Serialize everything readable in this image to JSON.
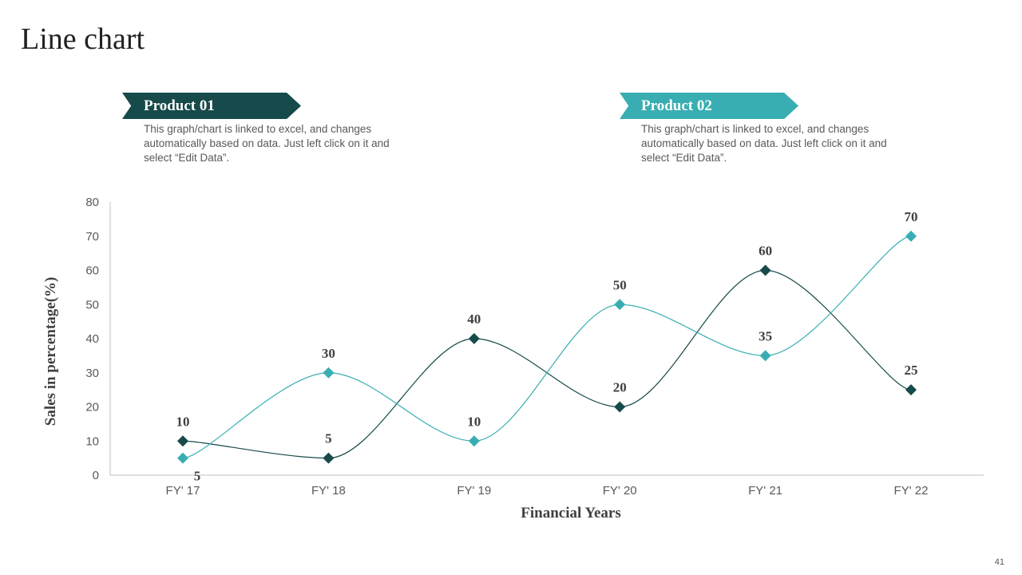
{
  "title": "Line chart",
  "legend": [
    {
      "label": "Product 01",
      "color": "#174a4a",
      "description": "This graph/chart is linked to excel, and changes automatically based on data. Just left click on it and select “Edit Data”."
    },
    {
      "label": "Product 02",
      "color": "#39aeb2",
      "description": "This graph/chart is linked to excel, and changes automatically based on data. Just left click on it and select “Edit Data”."
    }
  ],
  "page_number": "41",
  "chart_data": {
    "type": "line",
    "categories": [
      "FY' 17",
      "FY' 18",
      "FY' 19",
      "FY' 20",
      "FY' 21",
      "FY' 22"
    ],
    "series": [
      {
        "name": "Product 01",
        "color": "#174a4a",
        "values": [
          10,
          5,
          40,
          20,
          60,
          25
        ]
      },
      {
        "name": "Product 02",
        "color": "#39aeb2",
        "values": [
          5,
          30,
          10,
          50,
          35,
          70
        ]
      }
    ],
    "xlabel": "Financial Years",
    "ylabel": "Sales in percentage(%)",
    "ylim": [
      0,
      80
    ],
    "yticks": [
      0,
      10,
      20,
      30,
      40,
      50,
      60,
      70,
      80
    ],
    "grid": false,
    "smooth": true,
    "marker": "diamond",
    "data_labels": true
  }
}
